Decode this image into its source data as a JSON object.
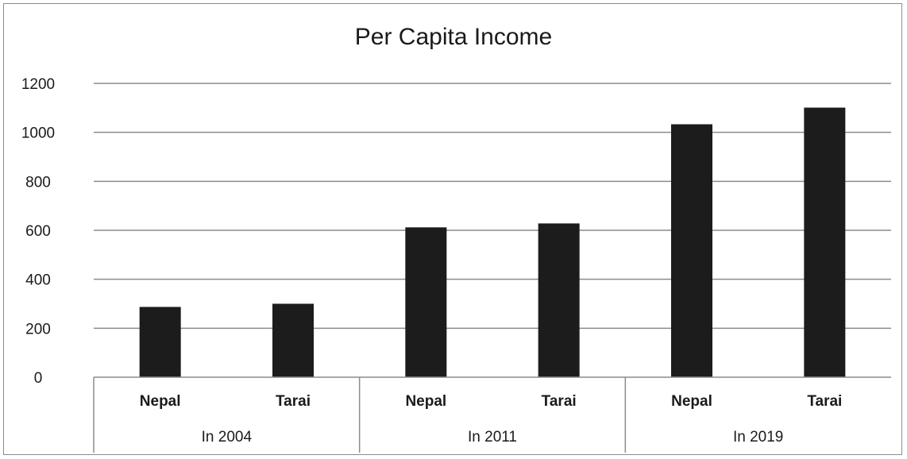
{
  "chart_data": {
    "type": "bar",
    "title": "Per Capita Income",
    "xlabel": "",
    "ylabel": "",
    "ylim": [
      0,
      1200
    ],
    "yticks": [
      0,
      200,
      400,
      600,
      800,
      1000,
      1200
    ],
    "grid": true,
    "legend": "none",
    "categories": [
      "Nepal",
      "Tarai",
      "Nepal",
      "Tarai",
      "Nepal",
      "Tarai"
    ],
    "groups": [
      {
        "label": "In 2004",
        "categories": [
          "Nepal",
          "Tarai"
        ]
      },
      {
        "label": "In 2011",
        "categories": [
          "Nepal",
          "Tarai"
        ]
      },
      {
        "label": "In 2019",
        "categories": [
          "Nepal",
          "Tarai"
        ]
      }
    ],
    "values": [
      287,
      300,
      612,
      628,
      1033,
      1101
    ],
    "bar_color": "#1c1c1c"
  }
}
